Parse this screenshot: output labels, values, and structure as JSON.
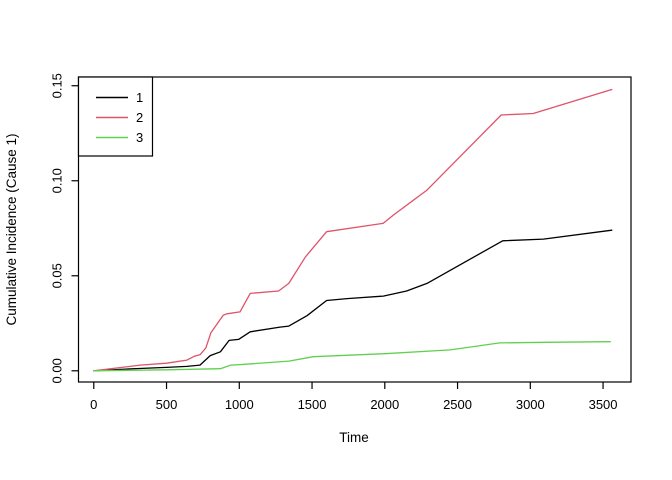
{
  "figure": {
    "background": "#ffffff",
    "frame_color": "#000000"
  },
  "chart_data": {
    "type": "line",
    "title": "",
    "xlabel": "Time",
    "ylabel": "Cumulative Incidence (Cause 1)",
    "grid": false,
    "legend_position": "topleft",
    "x_ticks": [
      0,
      500,
      1000,
      1500,
      2000,
      2500,
      3000,
      3500
    ],
    "y_ticks": [
      "0.00",
      "0.05",
      "0.10",
      "0.15"
    ],
    "y_tick_values": [
      0,
      0.05,
      0.1,
      0.15
    ],
    "xlim": [
      -105,
      3692
    ],
    "ylim": [
      -0.0059,
      0.1546
    ],
    "x_range_data": [
      0,
      3560
    ],
    "y_range_data": [
      0,
      0.148
    ],
    "series": [
      {
        "name": "1",
        "color": "#000000",
        "points": [
          [
            0,
            0
          ],
          [
            250,
            0.001
          ],
          [
            500,
            0.0018
          ],
          [
            640,
            0.0023
          ],
          [
            730,
            0.003
          ],
          [
            800,
            0.008
          ],
          [
            870,
            0.01
          ],
          [
            930,
            0.016
          ],
          [
            995,
            0.0165
          ],
          [
            1075,
            0.0205
          ],
          [
            1280,
            0.023
          ],
          [
            1340,
            0.0235
          ],
          [
            1465,
            0.029
          ],
          [
            1600,
            0.037
          ],
          [
            1740,
            0.038
          ],
          [
            1990,
            0.0393
          ],
          [
            2150,
            0.042
          ],
          [
            2290,
            0.046
          ],
          [
            2810,
            0.0684
          ],
          [
            3090,
            0.0693
          ],
          [
            3560,
            0.074
          ]
        ]
      },
      {
        "name": "2",
        "color": "#DF536B",
        "points": [
          [
            0,
            0
          ],
          [
            320,
            0.003
          ],
          [
            500,
            0.004
          ],
          [
            640,
            0.0056
          ],
          [
            690,
            0.0076
          ],
          [
            730,
            0.0084
          ],
          [
            770,
            0.012
          ],
          [
            805,
            0.02
          ],
          [
            890,
            0.0293
          ],
          [
            915,
            0.03
          ],
          [
            1005,
            0.031
          ],
          [
            1075,
            0.0407
          ],
          [
            1270,
            0.042
          ],
          [
            1340,
            0.046
          ],
          [
            1455,
            0.06
          ],
          [
            1600,
            0.0732
          ],
          [
            1990,
            0.0776
          ],
          [
            2060,
            0.082
          ],
          [
            2200,
            0.09
          ],
          [
            2245,
            0.0925
          ],
          [
            2290,
            0.0951
          ],
          [
            2800,
            0.1346
          ],
          [
            3020,
            0.1354
          ],
          [
            3560,
            0.148
          ]
        ]
      },
      {
        "name": "3",
        "color": "#61D04F",
        "points": [
          [
            0,
            0
          ],
          [
            500,
            0.0005
          ],
          [
            870,
            0.0011
          ],
          [
            940,
            0.003
          ],
          [
            1000,
            0.0032
          ],
          [
            1340,
            0.0051
          ],
          [
            1510,
            0.0074
          ],
          [
            1650,
            0.0079
          ],
          [
            2000,
            0.009
          ],
          [
            2450,
            0.011
          ],
          [
            2790,
            0.0147
          ],
          [
            3100,
            0.015
          ],
          [
            3550,
            0.0153
          ]
        ]
      }
    ]
  }
}
